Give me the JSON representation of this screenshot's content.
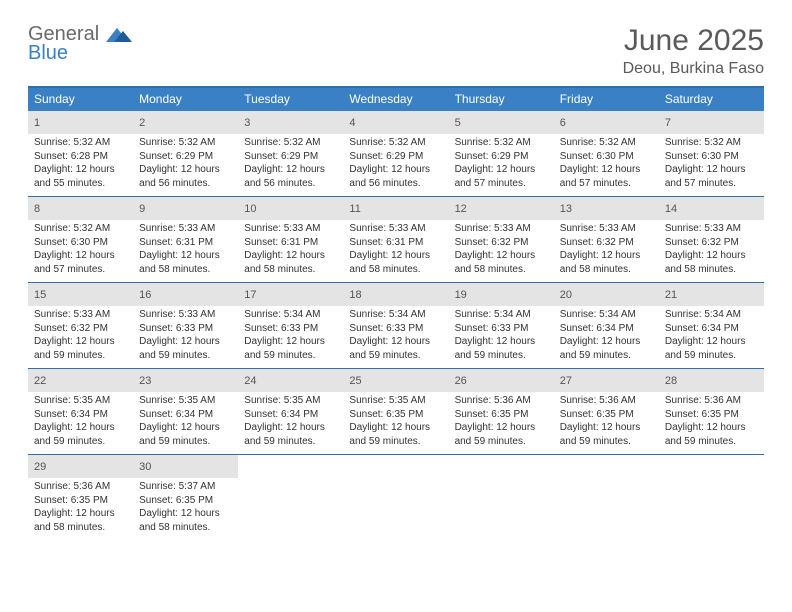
{
  "logo": {
    "text_top": "General",
    "text_bottom": "Blue"
  },
  "title": "June 2025",
  "location": "Deou, Burkina Faso",
  "colors": {
    "accent": "#3a80c4",
    "accent_dark": "#2f6fa8",
    "daynum_bg": "#e4e4e4",
    "text_muted": "#5a5a5a"
  },
  "day_headers": [
    "Sunday",
    "Monday",
    "Tuesday",
    "Wednesday",
    "Thursday",
    "Friday",
    "Saturday"
  ],
  "weeks": [
    [
      {
        "n": "1",
        "sr": "5:32 AM",
        "ss": "6:28 PM",
        "dl": "12 hours and 55 minutes."
      },
      {
        "n": "2",
        "sr": "5:32 AM",
        "ss": "6:29 PM",
        "dl": "12 hours and 56 minutes."
      },
      {
        "n": "3",
        "sr": "5:32 AM",
        "ss": "6:29 PM",
        "dl": "12 hours and 56 minutes."
      },
      {
        "n": "4",
        "sr": "5:32 AM",
        "ss": "6:29 PM",
        "dl": "12 hours and 56 minutes."
      },
      {
        "n": "5",
        "sr": "5:32 AM",
        "ss": "6:29 PM",
        "dl": "12 hours and 57 minutes."
      },
      {
        "n": "6",
        "sr": "5:32 AM",
        "ss": "6:30 PM",
        "dl": "12 hours and 57 minutes."
      },
      {
        "n": "7",
        "sr": "5:32 AM",
        "ss": "6:30 PM",
        "dl": "12 hours and 57 minutes."
      }
    ],
    [
      {
        "n": "8",
        "sr": "5:32 AM",
        "ss": "6:30 PM",
        "dl": "12 hours and 57 minutes."
      },
      {
        "n": "9",
        "sr": "5:33 AM",
        "ss": "6:31 PM",
        "dl": "12 hours and 58 minutes."
      },
      {
        "n": "10",
        "sr": "5:33 AM",
        "ss": "6:31 PM",
        "dl": "12 hours and 58 minutes."
      },
      {
        "n": "11",
        "sr": "5:33 AM",
        "ss": "6:31 PM",
        "dl": "12 hours and 58 minutes."
      },
      {
        "n": "12",
        "sr": "5:33 AM",
        "ss": "6:32 PM",
        "dl": "12 hours and 58 minutes."
      },
      {
        "n": "13",
        "sr": "5:33 AM",
        "ss": "6:32 PM",
        "dl": "12 hours and 58 minutes."
      },
      {
        "n": "14",
        "sr": "5:33 AM",
        "ss": "6:32 PM",
        "dl": "12 hours and 58 minutes."
      }
    ],
    [
      {
        "n": "15",
        "sr": "5:33 AM",
        "ss": "6:32 PM",
        "dl": "12 hours and 59 minutes."
      },
      {
        "n": "16",
        "sr": "5:33 AM",
        "ss": "6:33 PM",
        "dl": "12 hours and 59 minutes."
      },
      {
        "n": "17",
        "sr": "5:34 AM",
        "ss": "6:33 PM",
        "dl": "12 hours and 59 minutes."
      },
      {
        "n": "18",
        "sr": "5:34 AM",
        "ss": "6:33 PM",
        "dl": "12 hours and 59 minutes."
      },
      {
        "n": "19",
        "sr": "5:34 AM",
        "ss": "6:33 PM",
        "dl": "12 hours and 59 minutes."
      },
      {
        "n": "20",
        "sr": "5:34 AM",
        "ss": "6:34 PM",
        "dl": "12 hours and 59 minutes."
      },
      {
        "n": "21",
        "sr": "5:34 AM",
        "ss": "6:34 PM",
        "dl": "12 hours and 59 minutes."
      }
    ],
    [
      {
        "n": "22",
        "sr": "5:35 AM",
        "ss": "6:34 PM",
        "dl": "12 hours and 59 minutes."
      },
      {
        "n": "23",
        "sr": "5:35 AM",
        "ss": "6:34 PM",
        "dl": "12 hours and 59 minutes."
      },
      {
        "n": "24",
        "sr": "5:35 AM",
        "ss": "6:34 PM",
        "dl": "12 hours and 59 minutes."
      },
      {
        "n": "25",
        "sr": "5:35 AM",
        "ss": "6:35 PM",
        "dl": "12 hours and 59 minutes."
      },
      {
        "n": "26",
        "sr": "5:36 AM",
        "ss": "6:35 PM",
        "dl": "12 hours and 59 minutes."
      },
      {
        "n": "27",
        "sr": "5:36 AM",
        "ss": "6:35 PM",
        "dl": "12 hours and 59 minutes."
      },
      {
        "n": "28",
        "sr": "5:36 AM",
        "ss": "6:35 PM",
        "dl": "12 hours and 59 minutes."
      }
    ],
    [
      {
        "n": "29",
        "sr": "5:36 AM",
        "ss": "6:35 PM",
        "dl": "12 hours and 58 minutes."
      },
      {
        "n": "30",
        "sr": "5:37 AM",
        "ss": "6:35 PM",
        "dl": "12 hours and 58 minutes."
      },
      null,
      null,
      null,
      null,
      null
    ]
  ],
  "labels": {
    "sunrise": "Sunrise: ",
    "sunset": "Sunset: ",
    "daylight": "Daylight: "
  }
}
